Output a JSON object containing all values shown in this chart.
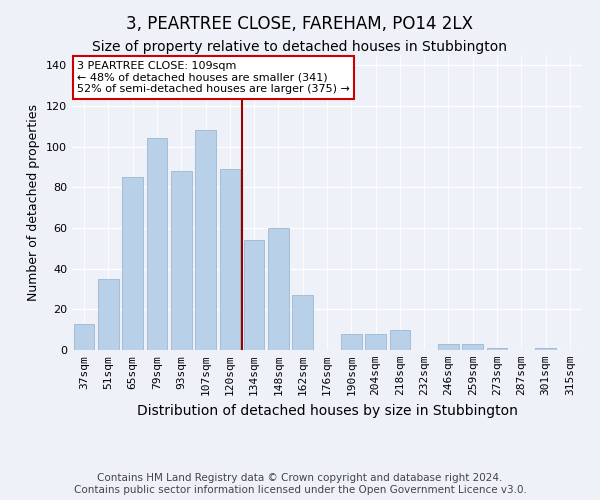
{
  "title": "3, PEARTREE CLOSE, FAREHAM, PO14 2LX",
  "subtitle": "Size of property relative to detached houses in Stubbington",
  "xlabel": "Distribution of detached houses by size in Stubbington",
  "ylabel": "Number of detached properties",
  "categories": [
    "37sqm",
    "51sqm",
    "65sqm",
    "79sqm",
    "93sqm",
    "107sqm",
    "120sqm",
    "134sqm",
    "148sqm",
    "162sqm",
    "176sqm",
    "190sqm",
    "204sqm",
    "218sqm",
    "232sqm",
    "246sqm",
    "259sqm",
    "273sqm",
    "287sqm",
    "301sqm",
    "315sqm"
  ],
  "values": [
    13,
    35,
    85,
    104,
    88,
    108,
    89,
    54,
    60,
    27,
    0,
    8,
    8,
    10,
    0,
    3,
    3,
    1,
    0,
    1,
    0
  ],
  "bar_color": "#b8d0e8",
  "bar_edgecolor": "#9ab8d0",
  "vline_x": 6.5,
  "vline_color": "#990000",
  "annotation_text": "3 PEARTREE CLOSE: 109sqm\n← 48% of detached houses are smaller (341)\n52% of semi-detached houses are larger (375) →",
  "annotation_box_color": "white",
  "annotation_box_edgecolor": "#cc0000",
  "ylim": [
    0,
    145
  ],
  "yticks": [
    0,
    20,
    40,
    60,
    80,
    100,
    120,
    140
  ],
  "background_color": "#eef2f8",
  "footer": "Contains HM Land Registry data © Crown copyright and database right 2024.\nContains public sector information licensed under the Open Government Licence v3.0.",
  "title_fontsize": 12,
  "subtitle_fontsize": 10,
  "xlabel_fontsize": 10,
  "ylabel_fontsize": 9,
  "footer_fontsize": 7.5,
  "tick_fontsize": 8,
  "annot_fontsize": 8
}
